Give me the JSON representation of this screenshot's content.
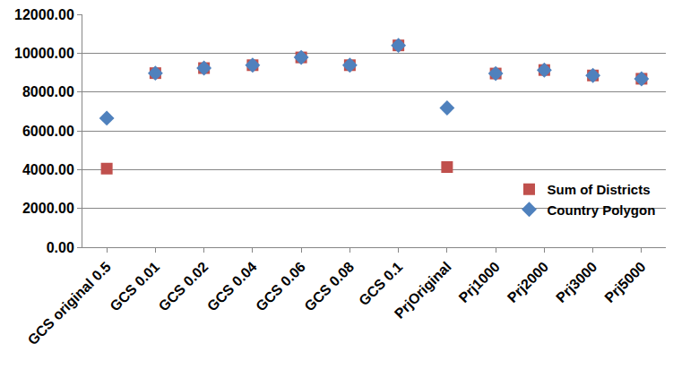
{
  "chart_data": {
    "type": "scatter",
    "categories": [
      "GCS original 0.5",
      "GCS 0.01",
      "GCS 0.02",
      "GCS 0.04",
      "GCS 0.06",
      "GCS 0.08",
      "GCS 0.1",
      "PrjOriginal",
      "Prj1000",
      "Prj2000",
      "Prj3000",
      "Prj5000"
    ],
    "series": [
      {
        "name": "Sum of Districts",
        "color": "#c0504d",
        "marker": "square",
        "values": [
          4050,
          8970,
          9230,
          9380,
          9780,
          9380,
          10400,
          4130,
          8950,
          9130,
          8850,
          8680
        ]
      },
      {
        "name": "Country Polygon",
        "color": "#4f81bd",
        "marker": "diamond",
        "values": [
          6650,
          8970,
          9230,
          9380,
          9780,
          9380,
          10400,
          7180,
          8950,
          9130,
          8850,
          8680
        ]
      }
    ],
    "ylim": [
      0,
      12000
    ],
    "yticks": [
      {
        "value": 0,
        "label": "0.00"
      },
      {
        "value": 2000,
        "label": "2000.00"
      },
      {
        "value": 4000,
        "label": "4000.00"
      },
      {
        "value": 6000,
        "label": "6000.00"
      },
      {
        "value": 8000,
        "label": "8000.00"
      },
      {
        "value": 10000,
        "label": "10000.00"
      },
      {
        "value": 12000,
        "label": "12000.00"
      }
    ],
    "grid": true,
    "legend": "lower right"
  }
}
